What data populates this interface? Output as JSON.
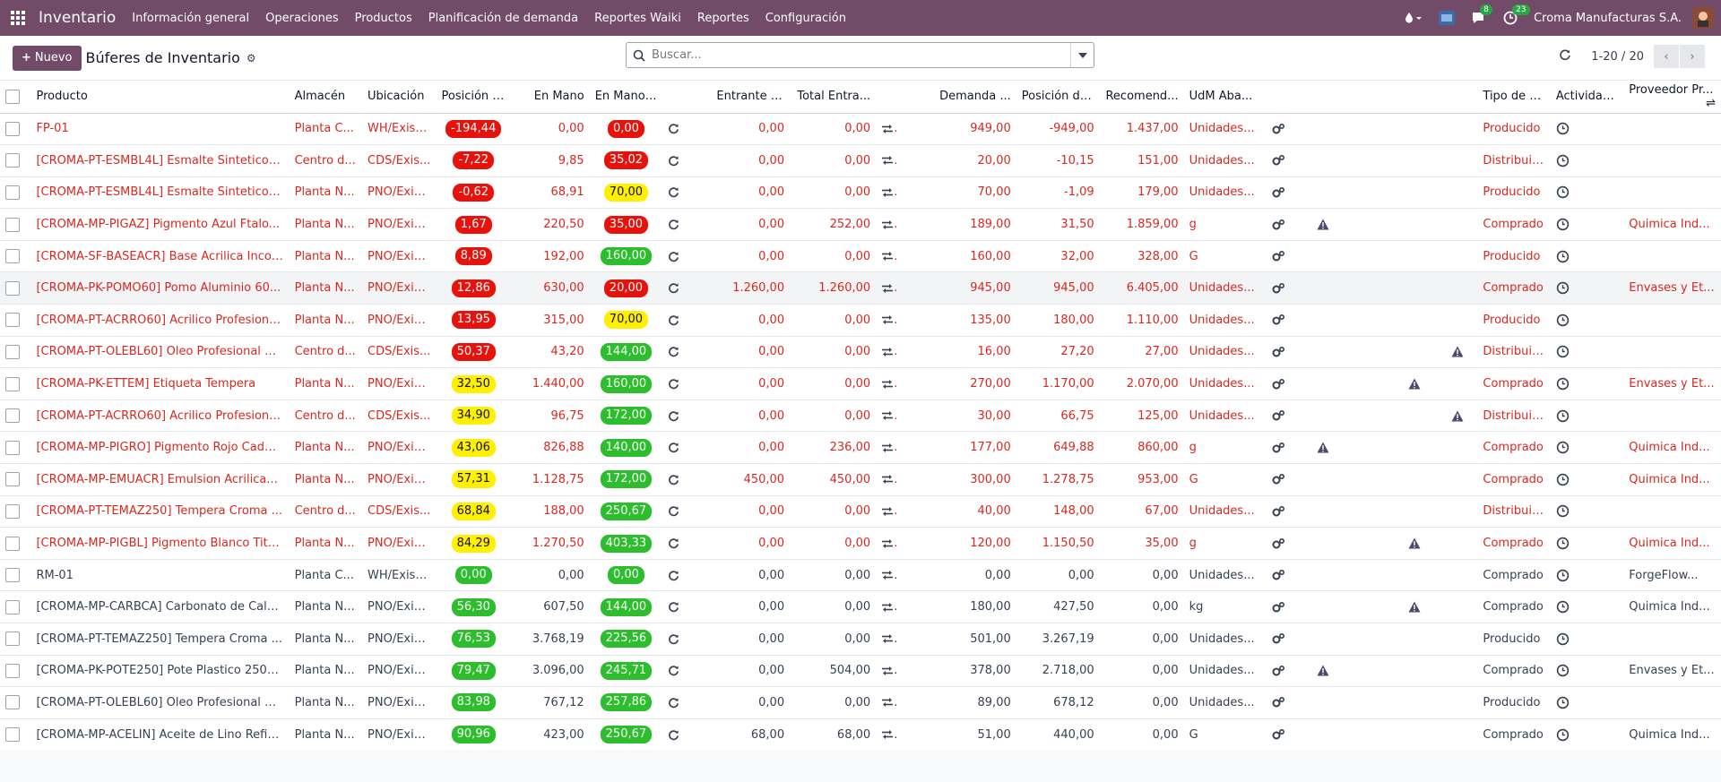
{
  "nav": {
    "brand": "Inventario",
    "menu": [
      "Información general",
      "Operaciones",
      "Productos",
      "Planificación de demanda",
      "Reportes Waiki",
      "Reportes",
      "Configuración"
    ],
    "chat_badge": "8",
    "activity_badge": "23",
    "company": "Croma Manufacturas S.A."
  },
  "control": {
    "new_label": "Nuevo",
    "title": "Búferes de Inventario",
    "search_placeholder": "Buscar...",
    "pager": "1-20 / 20"
  },
  "columns": [
    "Producto",
    "Almacén",
    "Ubicación",
    "Posición d...",
    "En Mano",
    "En Mano ...",
    "Entrante D...",
    "Total Entra...",
    "Demanda ...",
    "Posición de...",
    "Recomend...",
    "UdM Aba...",
    "Tipo de P...",
    "Actividad...",
    "Proveedor Pr..."
  ],
  "colors": {
    "accent": "#714b67",
    "red": "#d9281f",
    "pill_red": "#e8120c",
    "pill_yellow": "#ffef00",
    "pill_green": "#2cbe2c"
  },
  "rows": [
    {
      "product": "FP-01",
      "warehouse": "Planta C...",
      "location": "WH/Exist...",
      "pos": "-194,44",
      "pos_color": "red",
      "onhand": "0,00",
      "onhand2": "0,00",
      "onhand2_color": "red",
      "incoming": "0,00",
      "total_in": "0,00",
      "demand": "949,00",
      "position": "-949,00",
      "recommend": "1.437,00",
      "uom": "Unidades...",
      "warn": "",
      "type": "Producido",
      "vendor": "",
      "red": true
    },
    {
      "product": "[CROMA-PT-ESMBL4L] Esmalte Sintetico B...",
      "warehouse": "Centro d...",
      "location": "CDS/Exis...",
      "pos": "-7,22",
      "pos_color": "red",
      "onhand": "9,85",
      "onhand2": "35,02",
      "onhand2_color": "red",
      "incoming": "0,00",
      "total_in": "0,00",
      "demand": "20,00",
      "position": "-10,15",
      "recommend": "151,00",
      "uom": "Unidades...",
      "warn": "",
      "type": "Distribuido",
      "vendor": "",
      "red": true
    },
    {
      "product": "[CROMA-PT-ESMBL4L] Esmalte Sintetico B...",
      "warehouse": "Planta N...",
      "location": "PNO/Exis...",
      "pos": "-0,62",
      "pos_color": "red",
      "onhand": "68,91",
      "onhand2": "70,00",
      "onhand2_color": "yellow",
      "incoming": "0,00",
      "total_in": "0,00",
      "demand": "70,00",
      "position": "-1,09",
      "recommend": "179,00",
      "uom": "Unidades...",
      "warn": "",
      "type": "Producido",
      "vendor": "",
      "red": true
    },
    {
      "product": "[CROMA-MP-PIGAZ] Pigmento Azul Ftalo...",
      "warehouse": "Planta N...",
      "location": "PNO/Exis...",
      "pos": "1,67",
      "pos_color": "red",
      "onhand": "220,50",
      "onhand2": "35,00",
      "onhand2_color": "red",
      "incoming": "0,00",
      "total_in": "252,00",
      "demand": "189,00",
      "position": "31,50",
      "recommend": "1.859,00",
      "uom": "g",
      "warn": "a",
      "type": "Comprado",
      "vendor": "Quimica Ind...",
      "red": true
    },
    {
      "product": "[CROMA-SF-BASEACR] Base Acrilica Incol...",
      "warehouse": "Planta N...",
      "location": "PNO/Exis...",
      "pos": "8,89",
      "pos_color": "red",
      "onhand": "192,00",
      "onhand2": "160,00",
      "onhand2_color": "green",
      "incoming": "0,00",
      "total_in": "0,00",
      "demand": "160,00",
      "position": "32,00",
      "recommend": "328,00",
      "uom": "G",
      "warn": "",
      "type": "Producido",
      "vendor": "",
      "red": true
    },
    {
      "product": "[CROMA-PK-POMO60] Pomo Aluminio 60...",
      "warehouse": "Planta N...",
      "location": "PNO/Exis...",
      "pos": "12,86",
      "pos_color": "red",
      "onhand": "630,00",
      "onhand2": "20,00",
      "onhand2_color": "red",
      "incoming": "1.260,00",
      "total_in": "1.260,00",
      "demand": "945,00",
      "position": "945,00",
      "recommend": "6.405,00",
      "uom": "Unidades...",
      "warn": "",
      "type": "Comprado",
      "vendor": "Envases y Et...",
      "red": true,
      "hl": true
    },
    {
      "product": "[CROMA-PT-ACRRO60] Acrilico Profesional...",
      "warehouse": "Planta N...",
      "location": "PNO/Exis...",
      "pos": "13,95",
      "pos_color": "red",
      "onhand": "315,00",
      "onhand2": "70,00",
      "onhand2_color": "yellow",
      "incoming": "0,00",
      "total_in": "0,00",
      "demand": "135,00",
      "position": "180,00",
      "recommend": "1.110,00",
      "uom": "Unidades...",
      "warn": "",
      "type": "Producido",
      "vendor": "",
      "red": true
    },
    {
      "product": "[CROMA-PT-OLEBL60] Oleo Profesional Cr...",
      "warehouse": "Centro d...",
      "location": "CDS/Exis...",
      "pos": "50,37",
      "pos_color": "red",
      "onhand": "43,20",
      "onhand2": "144,00",
      "onhand2_color": "green",
      "incoming": "0,00",
      "total_in": "0,00",
      "demand": "16,00",
      "position": "27,20",
      "recommend": "27,00",
      "uom": "Unidades...",
      "warn": "c",
      "type": "Distribuido",
      "vendor": "",
      "red": true
    },
    {
      "product": "[CROMA-PK-ETTEM] Etiqueta Tempera",
      "warehouse": "Planta N...",
      "location": "PNO/Exis...",
      "pos": "32,50",
      "pos_color": "yellow",
      "onhand": "1.440,00",
      "onhand2": "160,00",
      "onhand2_color": "green",
      "incoming": "0,00",
      "total_in": "0,00",
      "demand": "270,00",
      "position": "1.170,00",
      "recommend": "2.070,00",
      "uom": "Unidades...",
      "warn": "b",
      "type": "Comprado",
      "vendor": "Envases y Et...",
      "red": true
    },
    {
      "product": "[CROMA-PT-ACRRO60] Acrilico Profesional...",
      "warehouse": "Centro d...",
      "location": "CDS/Exis...",
      "pos": "34,90",
      "pos_color": "yellow",
      "onhand": "96,75",
      "onhand2": "172,00",
      "onhand2_color": "green",
      "incoming": "0,00",
      "total_in": "0,00",
      "demand": "30,00",
      "position": "66,75",
      "recommend": "125,00",
      "uom": "Unidades...",
      "warn": "c",
      "type": "Distribuido",
      "vendor": "",
      "red": true
    },
    {
      "product": "[CROMA-MP-PIGRO] Pigmento Rojo Cadmi...",
      "warehouse": "Planta N...",
      "location": "PNO/Exis...",
      "pos": "43,06",
      "pos_color": "yellow",
      "onhand": "826,88",
      "onhand2": "140,00",
      "onhand2_color": "green",
      "incoming": "0,00",
      "total_in": "236,00",
      "demand": "177,00",
      "position": "649,88",
      "recommend": "860,00",
      "uom": "g",
      "warn": "a",
      "type": "Comprado",
      "vendor": "Quimica Ind...",
      "red": true
    },
    {
      "product": "[CROMA-MP-EMUACR] Emulsion Acrilica...",
      "warehouse": "Planta N...",
      "location": "PNO/Exis...",
      "pos": "57,31",
      "pos_color": "yellow",
      "onhand": "1.128,75",
      "onhand2": "172,00",
      "onhand2_color": "green",
      "incoming": "450,00",
      "total_in": "450,00",
      "demand": "300,00",
      "position": "1.278,75",
      "recommend": "953,00",
      "uom": "G",
      "warn": "",
      "type": "Comprado",
      "vendor": "Quimica Ind...",
      "red": true
    },
    {
      "product": "[CROMA-PT-TEMAZ250] Tempera Croma ...",
      "warehouse": "Centro d...",
      "location": "CDS/Exis...",
      "pos": "68,84",
      "pos_color": "yellow",
      "onhand": "188,00",
      "onhand2": "250,67",
      "onhand2_color": "green",
      "incoming": "0,00",
      "total_in": "0,00",
      "demand": "40,00",
      "position": "148,00",
      "recommend": "67,00",
      "uom": "Unidades...",
      "warn": "",
      "type": "Distribuido",
      "vendor": "",
      "red": true
    },
    {
      "product": "[CROMA-MP-PIGBL] Pigmento Blanco Tita...",
      "warehouse": "Planta N...",
      "location": "PNO/Exis...",
      "pos": "84,29",
      "pos_color": "yellow",
      "onhand": "1.270,50",
      "onhand2": "403,33",
      "onhand2_color": "green",
      "incoming": "0,00",
      "total_in": "0,00",
      "demand": "120,00",
      "position": "1.150,50",
      "recommend": "35,00",
      "uom": "g",
      "warn": "b",
      "type": "Comprado",
      "vendor": "Quimica Ind...",
      "red": true
    },
    {
      "product": "RM-01",
      "warehouse": "Planta C...",
      "location": "WH/Exist...",
      "pos": "0,00",
      "pos_color": "green",
      "onhand": "0,00",
      "onhand2": "0,00",
      "onhand2_color": "green",
      "incoming": "0,00",
      "total_in": "0,00",
      "demand": "0,00",
      "position": "0,00",
      "recommend": "0,00",
      "uom": "Unidades...",
      "warn": "",
      "type": "Comprado",
      "vendor": "ForgeFlow...",
      "red": false
    },
    {
      "product": "[CROMA-MP-CARBCA] Carbonato de Calci...",
      "warehouse": "Planta N...",
      "location": "PNO/Exis...",
      "pos": "56,30",
      "pos_color": "green",
      "onhand": "607,50",
      "onhand2": "144,00",
      "onhand2_color": "green",
      "incoming": "0,00",
      "total_in": "0,00",
      "demand": "180,00",
      "position": "427,50",
      "recommend": "0,00",
      "uom": "kg",
      "warn": "b",
      "type": "Comprado",
      "vendor": "Quimica Ind...",
      "red": false
    },
    {
      "product": "[CROMA-PT-TEMAZ250] Tempera Croma ...",
      "warehouse": "Planta N...",
      "location": "PNO/Exis...",
      "pos": "76,53",
      "pos_color": "green",
      "onhand": "3.768,19",
      "onhand2": "225,56",
      "onhand2_color": "green",
      "incoming": "0,00",
      "total_in": "0,00",
      "demand": "501,00",
      "position": "3.267,19",
      "recommend": "0,00",
      "uom": "Unidades...",
      "warn": "",
      "type": "Producido",
      "vendor": "",
      "red": false
    },
    {
      "product": "[CROMA-PK-POTE250] Pote Plastico 250g...",
      "warehouse": "Planta N...",
      "location": "PNO/Exis...",
      "pos": "79,47",
      "pos_color": "green",
      "onhand": "3.096,00",
      "onhand2": "245,71",
      "onhand2_color": "green",
      "incoming": "0,00",
      "total_in": "504,00",
      "demand": "378,00",
      "position": "2.718,00",
      "recommend": "0,00",
      "uom": "Unidades...",
      "warn": "a",
      "type": "Comprado",
      "vendor": "Envases y Et...",
      "red": false
    },
    {
      "product": "[CROMA-PT-OLEBL60] Oleo Profesional Cr...",
      "warehouse": "Planta N...",
      "location": "PNO/Exis...",
      "pos": "83,98",
      "pos_color": "green",
      "onhand": "767,12",
      "onhand2": "257,86",
      "onhand2_color": "green",
      "incoming": "0,00",
      "total_in": "0,00",
      "demand": "89,00",
      "position": "678,12",
      "recommend": "0,00",
      "uom": "Unidades...",
      "warn": "",
      "type": "Producido",
      "vendor": "",
      "red": false
    },
    {
      "product": "[CROMA-MP-ACELIN] Aceite de Lino Refin...",
      "warehouse": "Planta N...",
      "location": "PNO/Exis...",
      "pos": "90,96",
      "pos_color": "green",
      "onhand": "423,00",
      "onhand2": "250,67",
      "onhand2_color": "green",
      "incoming": "68,00",
      "total_in": "68,00",
      "demand": "51,00",
      "position": "440,00",
      "recommend": "0,00",
      "uom": "G",
      "warn": "",
      "type": "Comprado",
      "vendor": "Quimica Ind...",
      "red": false
    }
  ]
}
